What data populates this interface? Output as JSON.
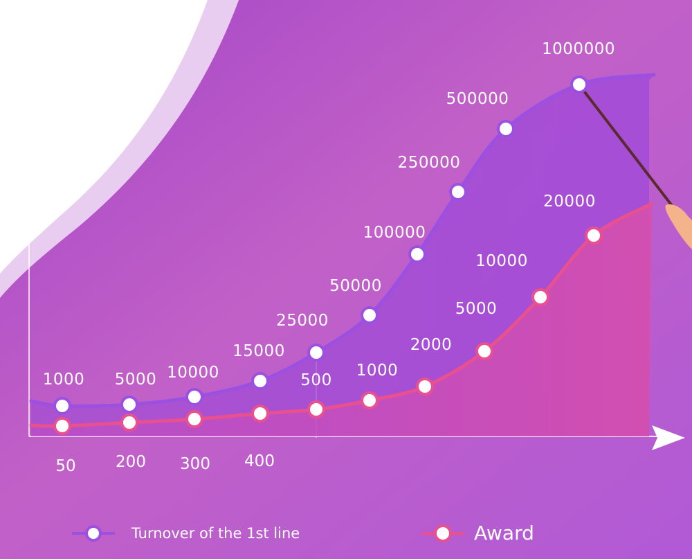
{
  "colors": {
    "background_top": "#b054c8",
    "background_bottom": "#b05ed8",
    "series_turnover": "#9b4fe0",
    "series_award": "#ea4a86",
    "marker_fill": "#ffffff"
  },
  "icons": [
    "arrow-up-icon",
    "arrow-right-icon",
    "pointer-stick-icon",
    "hand-icon"
  ],
  "chart_data": {
    "type": "line",
    "categories": [
      "50",
      "200",
      "300",
      "400",
      "500",
      "1000",
      "2000",
      "5000",
      "10000",
      "20000"
    ],
    "x_tick_labels": [
      "50",
      "200",
      "300",
      "400"
    ],
    "series": [
      {
        "name": "Turnover of the 1st line",
        "values": [
          1000,
          5000,
          10000,
          15000,
          25000,
          50000,
          100000,
          250000,
          500000,
          1000000
        ],
        "labels": [
          "1000",
          "5000",
          "10000",
          "15000",
          "25000",
          "50000",
          "100000",
          "250000",
          "500000",
          "1000000"
        ]
      },
      {
        "name": "Award",
        "values": [
          50,
          200,
          300,
          400,
          500,
          1000,
          2000,
          5000,
          10000,
          20000
        ],
        "labels": [
          "",
          "",
          "",
          "",
          "500",
          "1000",
          "2000",
          "5000",
          "10000",
          "20000"
        ]
      }
    ],
    "scale": "ordinal-rank",
    "grid": false,
    "legend": "bottom"
  },
  "legend": {
    "turnover_label": "Turnover of the 1st line",
    "award_label": "Award"
  }
}
